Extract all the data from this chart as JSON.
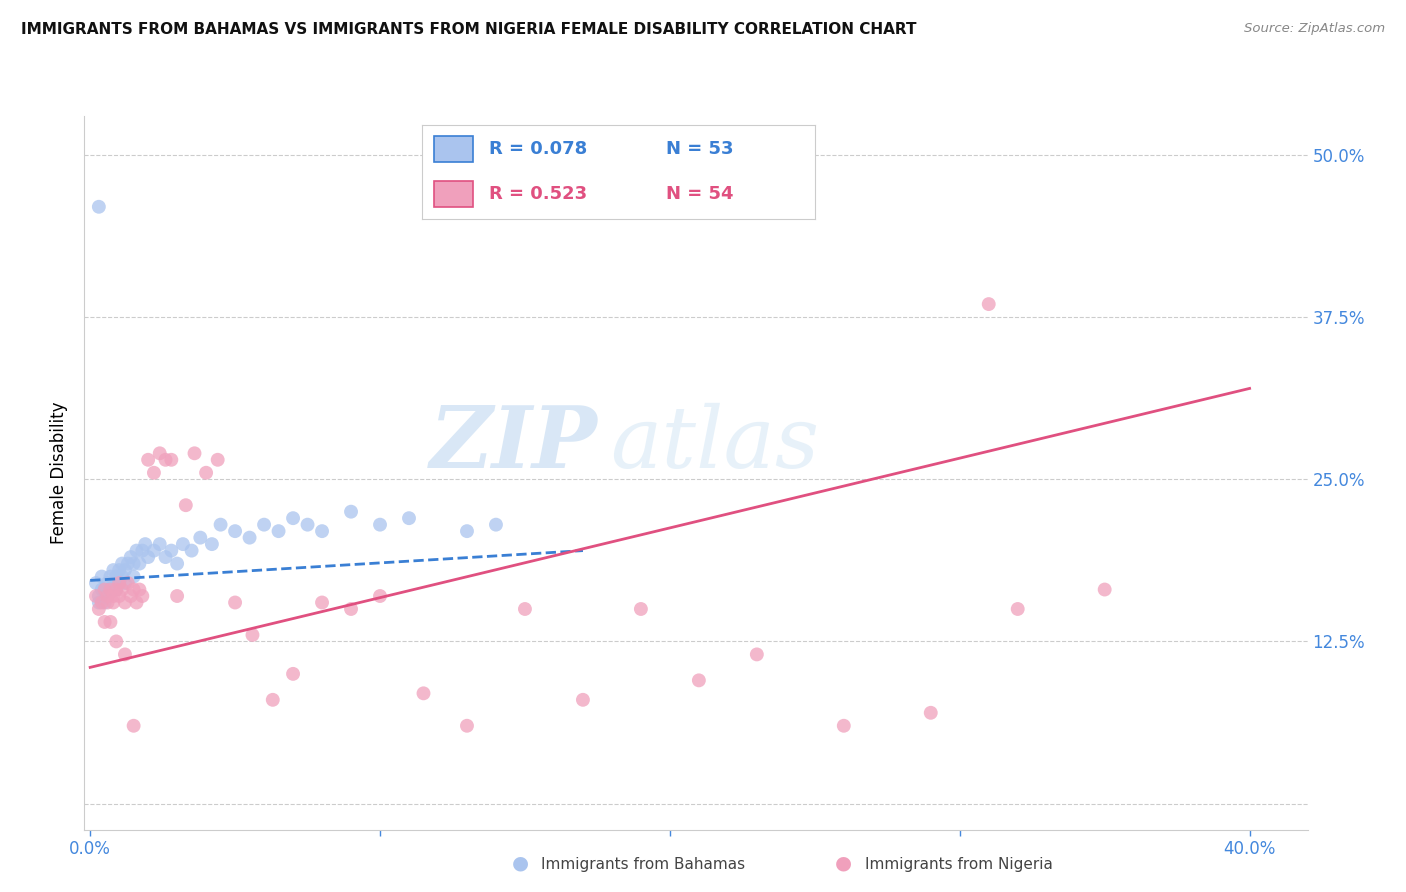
{
  "title": "IMMIGRANTS FROM BAHAMAS VS IMMIGRANTS FROM NIGERIA FEMALE DISABILITY CORRELATION CHART",
  "source": "Source: ZipAtlas.com",
  "ylabel": "Female Disability",
  "y_ticks": [
    0.0,
    0.125,
    0.25,
    0.375,
    0.5
  ],
  "y_tick_labels": [
    "",
    "12.5%",
    "25.0%",
    "37.5%",
    "50.0%"
  ],
  "xlim": [
    -0.002,
    0.42
  ],
  "ylim": [
    -0.02,
    0.53
  ],
  "watermark_line1": "ZIP",
  "watermark_line2": "atlas",
  "bahamas_color": "#aac4ee",
  "bahamas_edge": "#aac4ee",
  "nigeria_color": "#f0a0bc",
  "nigeria_edge": "#f0a0bc",
  "bahamas_line_color": "#3a7fd4",
  "nigeria_line_color": "#e05080",
  "legend_r1_text": "R = 0.078",
  "legend_n1_text": "N = 53",
  "legend_r2_text": "R = 0.523",
  "legend_n2_text": "N = 54",
  "bahamas_x": [
    0.002,
    0.003,
    0.003,
    0.004,
    0.004,
    0.005,
    0.005,
    0.006,
    0.006,
    0.007,
    0.007,
    0.008,
    0.008,
    0.009,
    0.009,
    0.01,
    0.01,
    0.011,
    0.011,
    0.012,
    0.012,
    0.013,
    0.014,
    0.015,
    0.015,
    0.016,
    0.017,
    0.018,
    0.019,
    0.02,
    0.022,
    0.024,
    0.026,
    0.028,
    0.03,
    0.032,
    0.035,
    0.038,
    0.042,
    0.045,
    0.05,
    0.055,
    0.06,
    0.065,
    0.07,
    0.075,
    0.08,
    0.09,
    0.1,
    0.11,
    0.13,
    0.14,
    0.003
  ],
  "bahamas_y": [
    0.17,
    0.155,
    0.16,
    0.165,
    0.175,
    0.165,
    0.155,
    0.17,
    0.16,
    0.175,
    0.165,
    0.18,
    0.17,
    0.175,
    0.165,
    0.18,
    0.17,
    0.175,
    0.185,
    0.18,
    0.17,
    0.185,
    0.19,
    0.175,
    0.185,
    0.195,
    0.185,
    0.195,
    0.2,
    0.19,
    0.195,
    0.2,
    0.19,
    0.195,
    0.185,
    0.2,
    0.195,
    0.205,
    0.2,
    0.215,
    0.21,
    0.205,
    0.215,
    0.21,
    0.22,
    0.215,
    0.21,
    0.225,
    0.215,
    0.22,
    0.21,
    0.215,
    0.46
  ],
  "nigeria_x": [
    0.002,
    0.003,
    0.004,
    0.005,
    0.006,
    0.006,
    0.007,
    0.008,
    0.008,
    0.009,
    0.01,
    0.01,
    0.011,
    0.012,
    0.013,
    0.014,
    0.015,
    0.016,
    0.017,
    0.018,
    0.02,
    0.022,
    0.024,
    0.026,
    0.028,
    0.03,
    0.033,
    0.036,
    0.04,
    0.044,
    0.05,
    0.056,
    0.063,
    0.07,
    0.08,
    0.09,
    0.1,
    0.115,
    0.13,
    0.15,
    0.17,
    0.19,
    0.21,
    0.23,
    0.26,
    0.29,
    0.32,
    0.35,
    0.005,
    0.007,
    0.009,
    0.012,
    0.015,
    0.31
  ],
  "nigeria_y": [
    0.16,
    0.15,
    0.155,
    0.165,
    0.16,
    0.155,
    0.165,
    0.16,
    0.155,
    0.165,
    0.17,
    0.16,
    0.165,
    0.155,
    0.17,
    0.16,
    0.165,
    0.155,
    0.165,
    0.16,
    0.265,
    0.255,
    0.27,
    0.265,
    0.265,
    0.16,
    0.23,
    0.27,
    0.255,
    0.265,
    0.155,
    0.13,
    0.08,
    0.1,
    0.155,
    0.15,
    0.16,
    0.085,
    0.06,
    0.15,
    0.08,
    0.15,
    0.095,
    0.115,
    0.06,
    0.07,
    0.15,
    0.165,
    0.14,
    0.14,
    0.125,
    0.115,
    0.06,
    0.385
  ],
  "bahamas_trendline_x": [
    0.0,
    0.17
  ],
  "bahamas_trendline_y": [
    0.172,
    0.195
  ],
  "nigeria_trendline_x": [
    0.0,
    0.4
  ],
  "nigeria_trendline_y": [
    0.105,
    0.32
  ]
}
